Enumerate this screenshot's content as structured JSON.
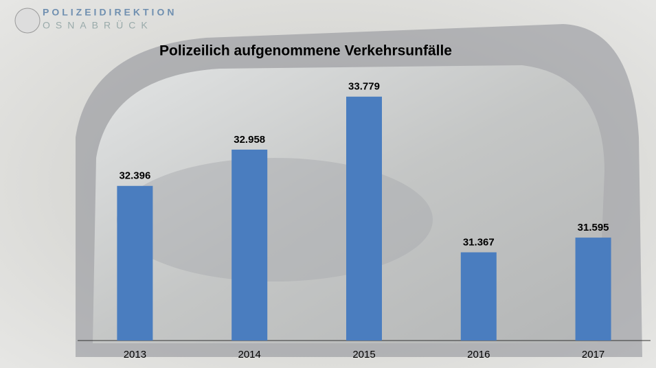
{
  "header": {
    "org": "POLIZEIDIREKTION",
    "city": "OSNABRÜCK"
  },
  "chart_data": {
    "type": "bar",
    "title": "Polizeilich aufgenommene Verkehrsunfälle",
    "categories": [
      "2013",
      "2014",
      "2015",
      "2016",
      "2017"
    ],
    "values": [
      32396,
      32958,
      33779,
      31367,
      31595
    ],
    "value_labels": [
      "32.396",
      "32.958",
      "33.779",
      "31.367",
      "31.595"
    ],
    "color": "#4a7dbf",
    "ylim": [
      30000,
      34000
    ]
  }
}
